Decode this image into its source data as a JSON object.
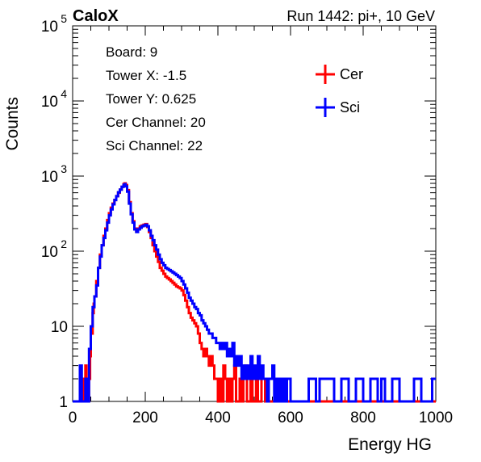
{
  "chart_data": {
    "type": "line",
    "brand": "CaloX",
    "run_label": "Run 1442: pi+, 10 GeV",
    "xlabel": "Energy HG",
    "ylabel": "Counts",
    "xlim": [
      0,
      1000
    ],
    "ylim": [
      1,
      100000
    ],
    "log_y": true,
    "x_ticks": [
      {
        "value": 0,
        "label": "0"
      },
      {
        "value": 200,
        "label": "200"
      },
      {
        "value": 400,
        "label": "400"
      },
      {
        "value": 600,
        "label": "600"
      },
      {
        "value": 800,
        "label": "800"
      },
      {
        "value": 1000,
        "label": "1000"
      }
    ],
    "y_ticks": [
      {
        "value": 1,
        "base": "1",
        "exp": ""
      },
      {
        "value": 10,
        "base": "10",
        "exp": ""
      },
      {
        "value": 100,
        "base": "10",
        "exp": "2"
      },
      {
        "value": 1000,
        "base": "10",
        "exp": "3"
      },
      {
        "value": 10000,
        "base": "10",
        "exp": "4"
      },
      {
        "value": 100000,
        "base": "10",
        "exp": "5"
      }
    ],
    "info_lines": [
      "Board: 9",
      "Tower X: -1.5",
      "Tower Y: 0.625",
      "Cer Channel: 20",
      "Sci Channel: 22"
    ],
    "legend_position": "top-right",
    "series": [
      {
        "name": "Cer",
        "color": "#ff0000",
        "points": [
          [
            0,
            1
          ],
          [
            20,
            1
          ],
          [
            25,
            2
          ],
          [
            30,
            1
          ],
          [
            33,
            1
          ],
          [
            35,
            3
          ],
          [
            38,
            1
          ],
          [
            42,
            1
          ],
          [
            45,
            2
          ],
          [
            48,
            4
          ],
          [
            50,
            8
          ],
          [
            55,
            15
          ],
          [
            58,
            20
          ],
          [
            60,
            25
          ],
          [
            65,
            40
          ],
          [
            70,
            60
          ],
          [
            75,
            90
          ],
          [
            80,
            120
          ],
          [
            85,
            160
          ],
          [
            90,
            200
          ],
          [
            95,
            260
          ],
          [
            100,
            320
          ],
          [
            105,
            380
          ],
          [
            110,
            430
          ],
          [
            115,
            480
          ],
          [
            120,
            540
          ],
          [
            125,
            600
          ],
          [
            130,
            660
          ],
          [
            135,
            720
          ],
          [
            140,
            780
          ],
          [
            143,
            800
          ],
          [
            146,
            760
          ],
          [
            150,
            650
          ],
          [
            155,
            450
          ],
          [
            160,
            320
          ],
          [
            165,
            250
          ],
          [
            170,
            200
          ],
          [
            175,
            185
          ],
          [
            180,
            200
          ],
          [
            185,
            215
          ],
          [
            190,
            220
          ],
          [
            195,
            225
          ],
          [
            200,
            230
          ],
          [
            205,
            210
          ],
          [
            210,
            180
          ],
          [
            215,
            150
          ],
          [
            220,
            120
          ],
          [
            225,
            100
          ],
          [
            230,
            85
          ],
          [
            235,
            72
          ],
          [
            240,
            60
          ],
          [
            245,
            55
          ],
          [
            250,
            50
          ],
          [
            255,
            46
          ],
          [
            260,
            44
          ],
          [
            265,
            42
          ],
          [
            270,
            40
          ],
          [
            275,
            38
          ],
          [
            280,
            36
          ],
          [
            285,
            34
          ],
          [
            290,
            33
          ],
          [
            295,
            32
          ],
          [
            300,
            30
          ],
          [
            305,
            26
          ],
          [
            310,
            22
          ],
          [
            315,
            18
          ],
          [
            320,
            15
          ],
          [
            325,
            13
          ],
          [
            330,
            12
          ],
          [
            335,
            11
          ],
          [
            340,
            10
          ],
          [
            345,
            8
          ],
          [
            350,
            6
          ],
          [
            355,
            5
          ],
          [
            360,
            4
          ],
          [
            365,
            5
          ],
          [
            370,
            4
          ],
          [
            375,
            3
          ],
          [
            380,
            4
          ],
          [
            385,
            3
          ],
          [
            390,
            2
          ],
          [
            395,
            2
          ],
          [
            400,
            1
          ],
          [
            405,
            2
          ],
          [
            410,
            1
          ],
          [
            415,
            3
          ],
          [
            420,
            2
          ],
          [
            425,
            1
          ],
          [
            430,
            2
          ],
          [
            435,
            1
          ],
          [
            440,
            2
          ],
          [
            445,
            3
          ],
          [
            450,
            1
          ],
          [
            455,
            1
          ],
          [
            460,
            2
          ],
          [
            465,
            1
          ],
          [
            470,
            2
          ],
          [
            475,
            3
          ],
          [
            480,
            1
          ],
          [
            485,
            1
          ],
          [
            490,
            2
          ],
          [
            495,
            1
          ],
          [
            500,
            1
          ],
          [
            505,
            2
          ],
          [
            510,
            1
          ],
          [
            515,
            1
          ],
          [
            520,
            2
          ],
          [
            530,
            1
          ],
          [
            540,
            1
          ],
          [
            550,
            1
          ],
          [
            560,
            1
          ],
          [
            1000,
            1
          ]
        ]
      },
      {
        "name": "Sci",
        "color": "#0000ff",
        "points": [
          [
            0,
            1
          ],
          [
            15,
            1
          ],
          [
            20,
            3
          ],
          [
            25,
            1
          ],
          [
            30,
            1
          ],
          [
            35,
            2
          ],
          [
            40,
            1
          ],
          [
            45,
            5
          ],
          [
            50,
            10
          ],
          [
            55,
            18
          ],
          [
            60,
            25
          ],
          [
            65,
            35
          ],
          [
            70,
            60
          ],
          [
            75,
            85
          ],
          [
            80,
            120
          ],
          [
            85,
            150
          ],
          [
            90,
            190
          ],
          [
            95,
            240
          ],
          [
            100,
            300
          ],
          [
            105,
            360
          ],
          [
            110,
            420
          ],
          [
            115,
            480
          ],
          [
            120,
            540
          ],
          [
            125,
            610
          ],
          [
            130,
            660
          ],
          [
            135,
            720
          ],
          [
            140,
            760
          ],
          [
            143,
            780
          ],
          [
            146,
            730
          ],
          [
            150,
            620
          ],
          [
            155,
            430
          ],
          [
            160,
            310
          ],
          [
            165,
            240
          ],
          [
            170,
            195
          ],
          [
            175,
            180
          ],
          [
            180,
            195
          ],
          [
            185,
            205
          ],
          [
            190,
            215
          ],
          [
            195,
            220
          ],
          [
            200,
            225
          ],
          [
            205,
            215
          ],
          [
            210,
            190
          ],
          [
            215,
            160
          ],
          [
            220,
            140
          ],
          [
            225,
            120
          ],
          [
            230,
            105
          ],
          [
            235,
            90
          ],
          [
            240,
            78
          ],
          [
            245,
            70
          ],
          [
            250,
            65
          ],
          [
            255,
            60
          ],
          [
            260,
            58
          ],
          [
            265,
            56
          ],
          [
            270,
            54
          ],
          [
            275,
            52
          ],
          [
            280,
            50
          ],
          [
            285,
            48
          ],
          [
            290,
            46
          ],
          [
            295,
            44
          ],
          [
            300,
            40
          ],
          [
            305,
            36
          ],
          [
            310,
            32
          ],
          [
            315,
            28
          ],
          [
            320,
            24
          ],
          [
            325,
            22
          ],
          [
            330,
            20
          ],
          [
            335,
            18
          ],
          [
            340,
            17
          ],
          [
            345,
            15
          ],
          [
            350,
            14
          ],
          [
            355,
            12
          ],
          [
            360,
            11
          ],
          [
            365,
            10
          ],
          [
            370,
            9
          ],
          [
            375,
            8
          ],
          [
            380,
            8
          ],
          [
            385,
            7
          ],
          [
            390,
            7
          ],
          [
            395,
            6
          ],
          [
            400,
            6
          ],
          [
            405,
            5
          ],
          [
            410,
            6
          ],
          [
            415,
            5
          ],
          [
            420,
            6
          ],
          [
            425,
            4
          ],
          [
            430,
            5
          ],
          [
            435,
            4
          ],
          [
            440,
            6
          ],
          [
            445,
            3
          ],
          [
            450,
            4
          ],
          [
            455,
            3
          ],
          [
            460,
            4
          ],
          [
            465,
            2
          ],
          [
            470,
            3
          ],
          [
            475,
            2
          ],
          [
            480,
            3
          ],
          [
            485,
            2
          ],
          [
            490,
            4
          ],
          [
            495,
            2
          ],
          [
            500,
            3
          ],
          [
            505,
            2
          ],
          [
            510,
            4
          ],
          [
            515,
            2
          ],
          [
            520,
            3
          ],
          [
            525,
            2
          ],
          [
            530,
            2
          ],
          [
            535,
            1
          ],
          [
            540,
            2
          ],
          [
            545,
            2
          ],
          [
            550,
            3
          ],
          [
            555,
            1
          ],
          [
            560,
            2
          ],
          [
            565,
            1
          ],
          [
            570,
            2
          ],
          [
            575,
            1
          ],
          [
            580,
            2
          ],
          [
            585,
            1
          ],
          [
            590,
            2
          ],
          [
            600,
            1
          ],
          [
            620,
            1
          ],
          [
            640,
            1
          ],
          [
            650,
            2
          ],
          [
            670,
            1
          ],
          [
            680,
            2
          ],
          [
            700,
            2
          ],
          [
            720,
            1
          ],
          [
            740,
            2
          ],
          [
            760,
            1
          ],
          [
            780,
            2
          ],
          [
            800,
            1
          ],
          [
            820,
            2
          ],
          [
            840,
            1
          ],
          [
            850,
            2
          ],
          [
            860,
            1
          ],
          [
            880,
            2
          ],
          [
            900,
            1
          ],
          [
            920,
            1
          ],
          [
            940,
            2
          ],
          [
            960,
            1
          ],
          [
            980,
            1
          ],
          [
            990,
            2
          ],
          [
            1000,
            1
          ]
        ]
      }
    ]
  }
}
